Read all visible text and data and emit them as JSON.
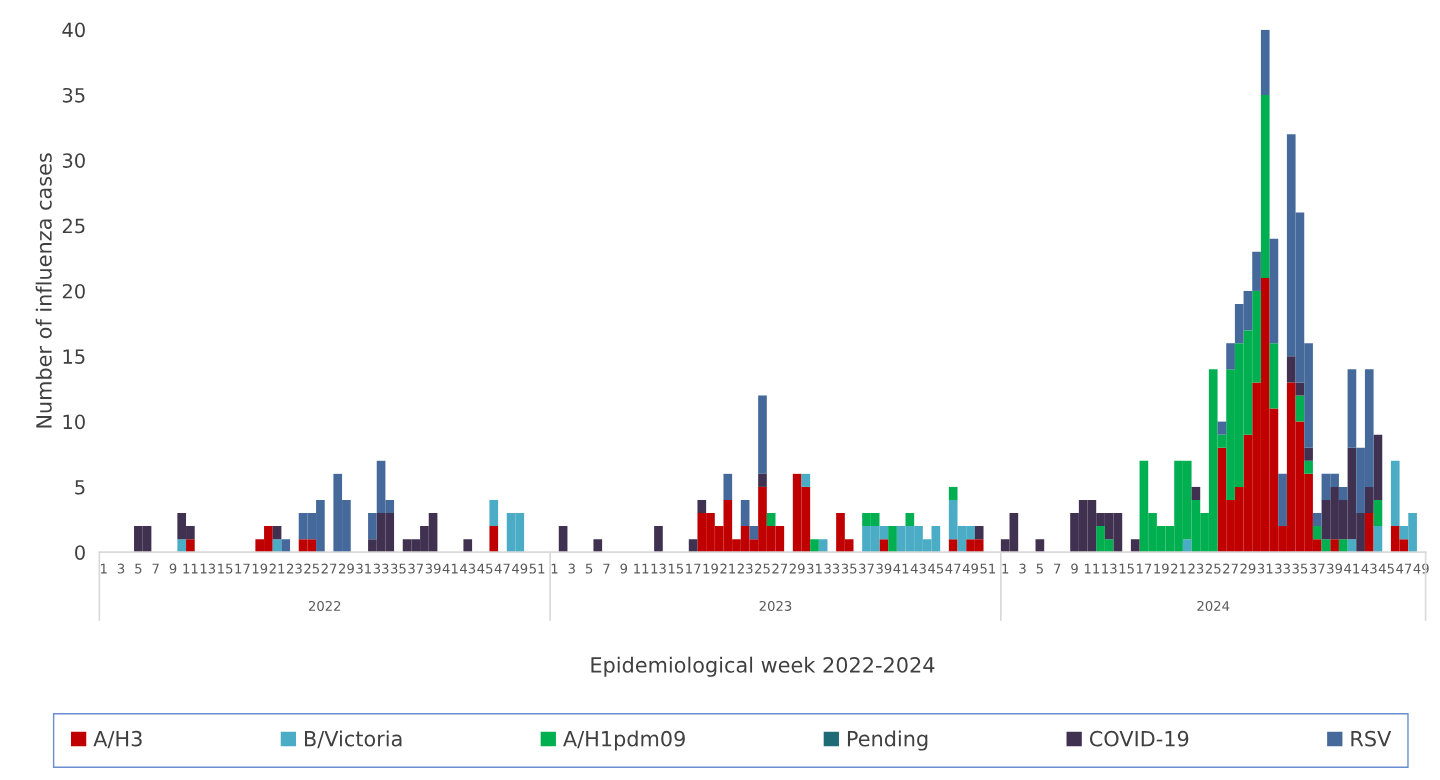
{
  "chart_data": {
    "type": "bar",
    "stacked": true,
    "xlabel": "Epidemiological week 2022-2024",
    "ylabel": "Number of influenza cases",
    "categories": [
      "1",
      null,
      "3",
      null,
      "5",
      null,
      "7",
      null,
      "9",
      null,
      "11",
      null,
      "13",
      null,
      "15",
      null,
      "17",
      null,
      "19",
      null,
      "21",
      null,
      "23",
      null,
      "25",
      null,
      "27",
      null,
      "29",
      null,
      "31",
      null,
      "33",
      null,
      "35",
      null,
      "37",
      null,
      "39",
      null,
      "41",
      null,
      "43",
      null,
      "45",
      null,
      "47",
      null,
      "49",
      null,
      "51",
      null,
      "1",
      null,
      "3",
      null,
      "5",
      null,
      "7",
      null,
      "9",
      null,
      "11",
      null,
      "13",
      null,
      "15",
      null,
      "17",
      null,
      "19",
      null,
      "21",
      null,
      "23",
      null,
      "25",
      null,
      "27",
      null,
      "29",
      null,
      "31",
      null,
      "33",
      null,
      "35",
      null,
      "37",
      null,
      "39",
      null,
      "41",
      null,
      "43",
      null,
      "45",
      null,
      "47",
      null,
      "49",
      null,
      "51",
      null,
      "1",
      null,
      "3",
      null,
      "5",
      null,
      "7",
      null,
      "9",
      null,
      "11",
      null,
      "13",
      null,
      "15",
      null,
      "17",
      null,
      "19",
      null,
      "21",
      null,
      "23",
      null,
      "25",
      null,
      "27",
      null,
      "29",
      null,
      "31",
      null,
      "33",
      null,
      "35",
      null,
      "37",
      null,
      "39",
      null,
      "41",
      null,
      "43",
      null,
      "45",
      null,
      "47",
      null,
      "49"
    ],
    "annotations": [
      "2022",
      "2023",
      "2024"
    ],
    "series": [
      {
        "name": "A/H3",
        "color": "#c00000",
        "values": [
          0,
          0,
          0,
          0,
          0,
          0,
          0,
          0,
          0,
          0,
          1,
          0,
          0,
          0,
          0,
          0,
          0,
          0,
          1,
          2,
          0,
          0,
          0,
          1,
          1,
          0,
          0,
          0,
          0,
          0,
          0,
          0,
          0,
          0,
          0,
          0,
          0,
          0,
          0,
          0,
          0,
          0,
          0,
          0,
          0,
          2,
          0,
          0,
          0,
          0,
          0,
          0,
          0,
          0,
          0,
          0,
          0,
          0,
          0,
          0,
          0,
          0,
          0,
          0,
          0,
          0,
          0,
          0,
          0,
          3,
          3,
          2,
          4,
          1,
          2,
          1,
          5,
          2,
          2,
          0,
          6,
          5,
          0,
          0,
          0,
          3,
          1,
          0,
          0,
          0,
          1,
          0,
          0,
          0,
          0,
          0,
          0,
          0,
          1,
          0,
          1,
          1,
          0,
          0,
          0,
          0,
          0,
          0,
          0,
          0,
          0,
          0,
          0,
          0,
          0,
          0,
          0,
          0,
          0,
          0,
          0,
          0,
          0,
          0,
          0,
          0,
          0,
          0,
          0,
          8,
          4,
          5,
          9,
          13,
          21,
          11,
          2,
          13,
          10,
          6,
          1,
          0,
          1,
          0,
          0,
          0,
          3,
          0,
          0,
          2,
          1,
          0,
          0
        ]
      },
      {
        "name": "B/Victoria",
        "color": "#4bacc6",
        "values": [
          0,
          0,
          0,
          0,
          0,
          0,
          0,
          0,
          0,
          1,
          0,
          0,
          0,
          0,
          0,
          0,
          0,
          0,
          0,
          0,
          1,
          0,
          0,
          0,
          0,
          0,
          0,
          0,
          0,
          0,
          0,
          0,
          0,
          0,
          0,
          0,
          0,
          0,
          0,
          0,
          0,
          0,
          0,
          0,
          0,
          2,
          0,
          3,
          3,
          0,
          0,
          0,
          0,
          0,
          0,
          0,
          0,
          0,
          0,
          0,
          0,
          0,
          0,
          0,
          0,
          0,
          0,
          0,
          0,
          0,
          0,
          0,
          0,
          0,
          0,
          0,
          0,
          0,
          0,
          0,
          0,
          1,
          0,
          1,
          0,
          0,
          0,
          0,
          2,
          2,
          1,
          0,
          2,
          2,
          2,
          1,
          2,
          0,
          3,
          2,
          1,
          0,
          0,
          0,
          0,
          0,
          0,
          0,
          0,
          0,
          0,
          0,
          0,
          0,
          0,
          0,
          0,
          0,
          0,
          0,
          0,
          0,
          0,
          0,
          0,
          1,
          0,
          0,
          0,
          0,
          0,
          0,
          0,
          0,
          0,
          0,
          0,
          0,
          0,
          0,
          0,
          0,
          0,
          0,
          1,
          0,
          0,
          2,
          0,
          5,
          1,
          3,
          0
        ]
      },
      {
        "name": "A/H1pdm09",
        "color": "#00b050",
        "values": [
          0,
          0,
          0,
          0,
          0,
          0,
          0,
          0,
          0,
          0,
          0,
          0,
          0,
          0,
          0,
          0,
          0,
          0,
          0,
          0,
          0,
          0,
          0,
          0,
          0,
          0,
          0,
          0,
          0,
          0,
          0,
          0,
          0,
          0,
          0,
          0,
          0,
          0,
          0,
          0,
          0,
          0,
          0,
          0,
          0,
          0,
          0,
          0,
          0,
          0,
          0,
          0,
          0,
          0,
          0,
          0,
          0,
          0,
          0,
          0,
          0,
          0,
          0,
          0,
          0,
          0,
          0,
          0,
          0,
          0,
          0,
          0,
          0,
          0,
          0,
          0,
          0,
          1,
          0,
          0,
          0,
          0,
          1,
          0,
          0,
          0,
          0,
          0,
          1,
          1,
          0,
          2,
          0,
          1,
          0,
          0,
          0,
          0,
          1,
          0,
          0,
          0,
          0,
          0,
          0,
          0,
          0,
          0,
          0,
          0,
          0,
          0,
          0,
          0,
          0,
          2,
          1,
          0,
          0,
          0,
          7,
          3,
          2,
          2,
          7,
          6,
          4,
          3,
          14,
          1,
          10,
          11,
          8,
          7,
          14,
          5,
          0,
          0,
          2,
          1,
          1,
          1,
          0,
          1,
          0,
          0,
          0,
          2,
          0,
          0,
          0,
          0,
          0
        ]
      },
      {
        "name": "Pending",
        "color": "#1f6b75",
        "values": [
          0,
          0,
          0,
          0,
          0,
          0,
          0,
          0,
          0,
          0,
          0,
          0,
          0,
          0,
          0,
          0,
          0,
          0,
          0,
          0,
          0,
          0,
          0,
          0,
          0,
          0,
          0,
          0,
          0,
          0,
          0,
          0,
          0,
          0,
          0,
          0,
          0,
          0,
          0,
          0,
          0,
          0,
          0,
          0,
          0,
          0,
          0,
          0,
          0,
          0,
          0,
          0,
          0,
          0,
          0,
          0,
          0,
          0,
          0,
          0,
          0,
          0,
          0,
          0,
          0,
          0,
          0,
          0,
          0,
          0,
          0,
          0,
          0,
          0,
          0,
          0,
          0,
          0,
          0,
          0,
          0,
          0,
          0,
          0,
          0,
          0,
          0,
          0,
          0,
          0,
          0,
          0,
          0,
          0,
          0,
          0,
          0,
          0,
          0,
          0,
          0,
          0,
          0,
          0,
          0,
          0,
          0,
          0,
          0,
          0,
          0,
          0,
          0,
          0,
          0,
          0,
          0,
          0,
          0,
          0,
          0,
          0,
          0,
          0,
          0,
          0,
          0,
          0,
          0,
          0,
          0,
          0,
          0,
          0,
          0,
          0,
          0,
          0,
          0,
          0,
          0,
          0,
          0,
          0,
          0,
          0,
          0,
          0,
          0,
          0,
          0,
          0,
          0
        ]
      },
      {
        "name": "COVID-19",
        "color": "#403151",
        "values": [
          0,
          0,
          0,
          0,
          2,
          2,
          0,
          0,
          0,
          2,
          1,
          0,
          0,
          0,
          0,
          0,
          0,
          0,
          0,
          0,
          1,
          0,
          0,
          0,
          0,
          0,
          0,
          0,
          0,
          0,
          0,
          1,
          3,
          3,
          0,
          1,
          1,
          2,
          3,
          0,
          0,
          0,
          1,
          0,
          0,
          0,
          0,
          0,
          0,
          0,
          0,
          0,
          0,
          2,
          0,
          0,
          0,
          1,
          0,
          0,
          0,
          0,
          0,
          0,
          2,
          0,
          0,
          0,
          1,
          1,
          0,
          0,
          0,
          0,
          0,
          0,
          1,
          0,
          0,
          0,
          0,
          0,
          0,
          0,
          0,
          0,
          0,
          0,
          0,
          0,
          0,
          0,
          0,
          0,
          0,
          0,
          0,
          0,
          0,
          0,
          0,
          1,
          0,
          0,
          1,
          3,
          0,
          0,
          1,
          0,
          0,
          0,
          3,
          4,
          4,
          1,
          2,
          3,
          0,
          1,
          0,
          0,
          0,
          0,
          0,
          0,
          1,
          0,
          0,
          0,
          0,
          0,
          0,
          0,
          0,
          0,
          0,
          2,
          1,
          1,
          0,
          3,
          4,
          3,
          7,
          3,
          2,
          5,
          0,
          0,
          0,
          0,
          0
        ]
      },
      {
        "name": "RSV",
        "color": "#44699a",
        "values": [
          0,
          0,
          0,
          0,
          0,
          0,
          0,
          0,
          0,
          0,
          0,
          0,
          0,
          0,
          0,
          0,
          0,
          0,
          0,
          0,
          0,
          1,
          0,
          2,
          2,
          4,
          0,
          6,
          4,
          0,
          0,
          2,
          4,
          1,
          0,
          0,
          0,
          0,
          0,
          0,
          0,
          0,
          0,
          0,
          0,
          0,
          0,
          0,
          0,
          0,
          0,
          0,
          0,
          0,
          0,
          0,
          0,
          0,
          0,
          0,
          0,
          0,
          0,
          0,
          0,
          0,
          0,
          0,
          0,
          0,
          0,
          0,
          2,
          0,
          2,
          1,
          6,
          0,
          0,
          0,
          0,
          0,
          0,
          0,
          0,
          0,
          0,
          0,
          0,
          0,
          0,
          0,
          0,
          0,
          0,
          0,
          0,
          0,
          0,
          0,
          0,
          0,
          0,
          0,
          0,
          0,
          0,
          0,
          0,
          0,
          0,
          0,
          0,
          0,
          0,
          0,
          0,
          0,
          0,
          0,
          0,
          0,
          0,
          0,
          0,
          0,
          0,
          0,
          0,
          1,
          2,
          3,
          3,
          3,
          5,
          8,
          4,
          17,
          13,
          8,
          1,
          2,
          1,
          1,
          6,
          5,
          9,
          0,
          0,
          0,
          0,
          0,
          0
        ]
      }
    ],
    "ylim": [
      0,
      40
    ],
    "yticks": [
      0,
      5,
      10,
      15,
      20,
      25,
      30,
      35,
      40
    ],
    "grid": false,
    "legend": "bottom"
  }
}
